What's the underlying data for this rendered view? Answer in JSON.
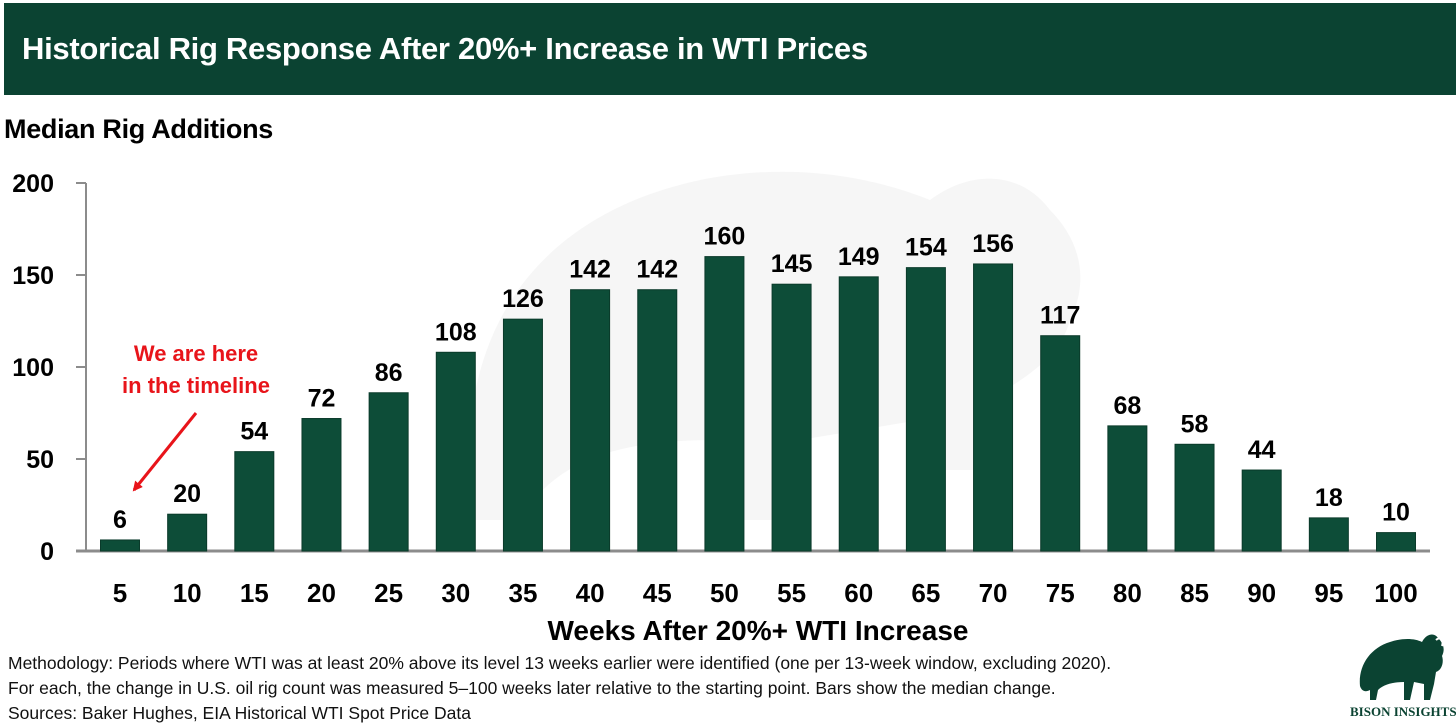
{
  "header": {
    "title": "Historical Rig Response After 20%+ Increase in WTI Prices"
  },
  "colors": {
    "header_bg": "#0b4332",
    "bar": "#0d4d38",
    "annotation": "#e8141a",
    "axis": "#8c8c8c"
  },
  "annotation": {
    "line1": "We are here",
    "line2": "in the timeline",
    "target_category": "5"
  },
  "notes": {
    "methodology_line1": "Methodology: Periods where WTI was at least 20% above its level 13 weeks earlier were identified (one per 13-week window, excluding 2020).",
    "methodology_line2": "For each, the change in U.S. oil rig count was measured 5–100 weeks later relative to the starting point. Bars show the median change.",
    "sources": "Sources: Baker Hughes, EIA Historical WTI Spot Price Data"
  },
  "logo": {
    "text": "BISON INSIGHTS",
    "icon": "bison-icon"
  },
  "chart_data": {
    "type": "bar",
    "title": "Historical Rig Response After 20%+ Increase in WTI Prices",
    "ylabel": "Median Rig Additions",
    "xlabel": "Weeks After 20%+ WTI Increase",
    "categories": [
      "5",
      "10",
      "15",
      "20",
      "25",
      "30",
      "35",
      "40",
      "45",
      "50",
      "55",
      "60",
      "65",
      "70",
      "75",
      "80",
      "85",
      "90",
      "95",
      "100"
    ],
    "values": [
      6,
      20,
      54,
      72,
      86,
      108,
      126,
      142,
      142,
      160,
      145,
      149,
      154,
      156,
      117,
      68,
      58,
      44,
      18,
      10
    ],
    "ylim": [
      0,
      200
    ],
    "yticks": [
      "0",
      "50",
      "100",
      "150",
      "200"
    ],
    "grid": false,
    "legend": "none"
  }
}
